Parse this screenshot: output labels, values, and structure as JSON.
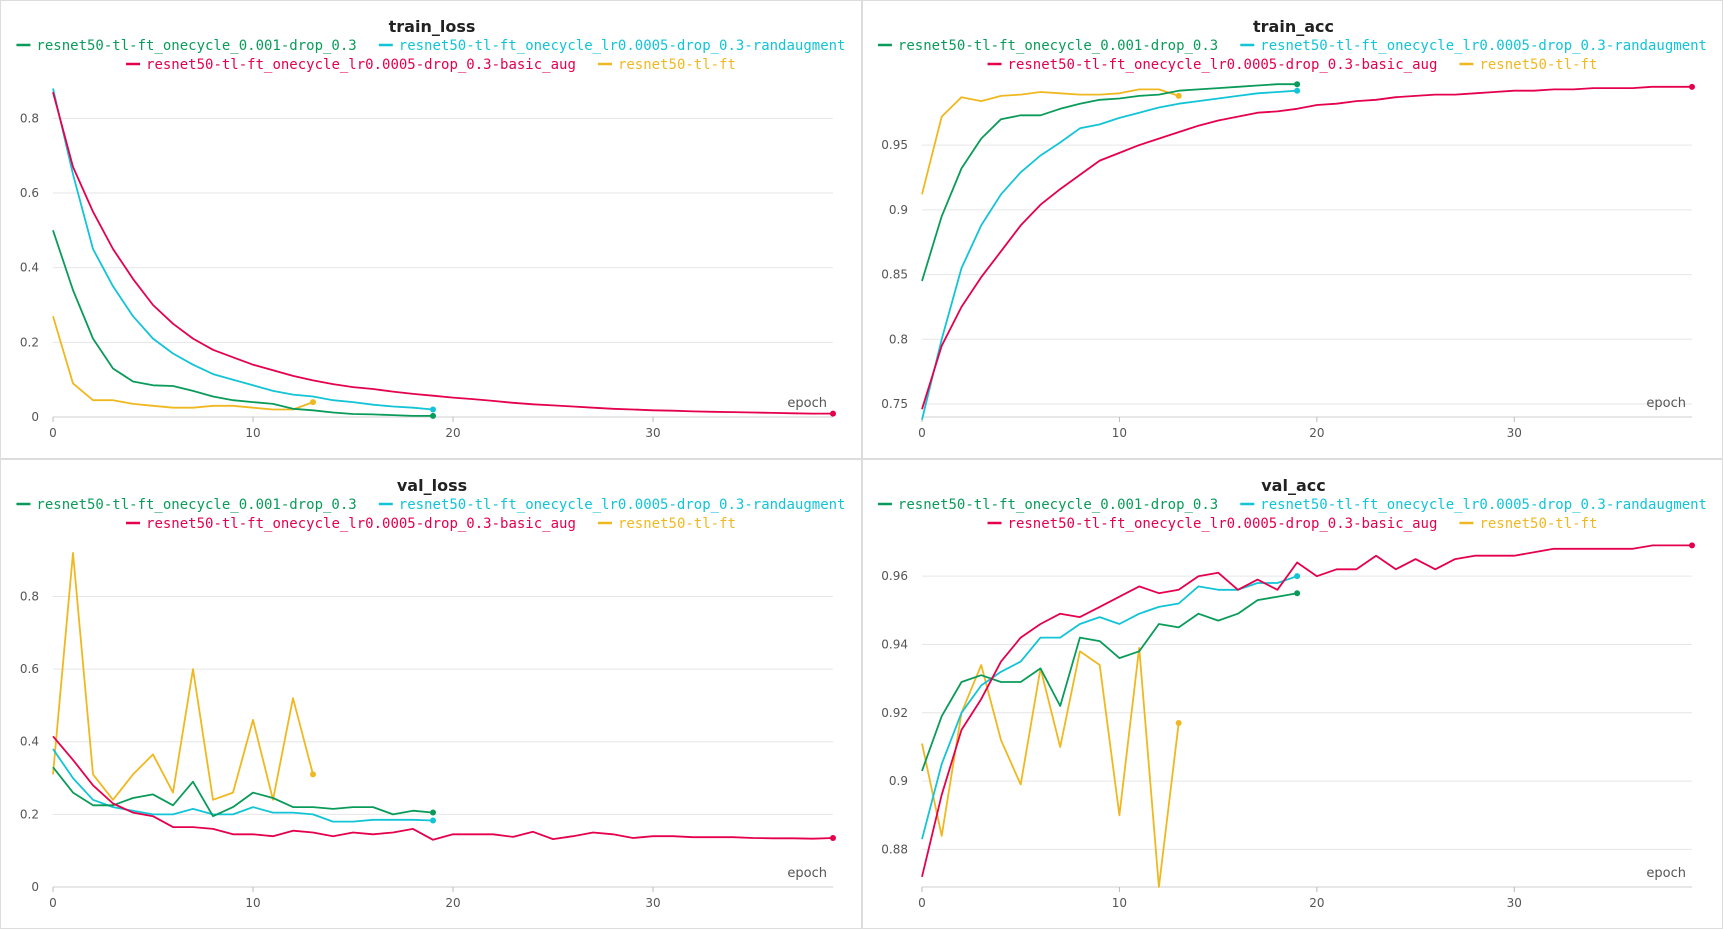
{
  "colors": {
    "resnet50-tl-ft_onecycle_0.001-drop_0.3": "#0a9b5a",
    "resnet50-tl-ft_onecycle_lr0.0005-drop_0.3-randaugment": "#12c4d6",
    "resnet50-tl-ft_onecycle_lr0.0005-drop_0.3-basic_aug": "#e5004d",
    "resnet50-tl-ft": "#f0b820"
  },
  "chart_data": [
    {
      "type": "line",
      "title": "train_loss",
      "xlabel": "epoch",
      "ylabel": "",
      "xlim": [
        0,
        39
      ],
      "ylim": [
        0,
        0.9
      ],
      "xticks": [
        0,
        10,
        20,
        30
      ],
      "yticks": [
        0,
        0.2,
        0.4,
        0.6,
        0.8
      ],
      "ytick_labels": [
        "0",
        "0.2",
        "0.4",
        "0.6",
        "0.8"
      ],
      "grid": true,
      "legend": "top",
      "series": [
        {
          "name": "resnet50-tl-ft_onecycle_0.001-drop_0.3",
          "values": [
            0.5,
            0.34,
            0.21,
            0.13,
            0.095,
            0.085,
            0.083,
            0.07,
            0.055,
            0.045,
            0.04,
            0.035,
            0.022,
            0.018,
            0.012,
            0.008,
            0.007,
            0.005,
            0.003,
            0.003
          ]
        },
        {
          "name": "resnet50-tl-ft_onecycle_lr0.0005-drop_0.3-randaugment",
          "values": [
            0.88,
            0.65,
            0.45,
            0.35,
            0.27,
            0.21,
            0.17,
            0.14,
            0.115,
            0.1,
            0.085,
            0.07,
            0.06,
            0.055,
            0.045,
            0.04,
            0.033,
            0.028,
            0.025,
            0.02
          ]
        },
        {
          "name": "resnet50-tl-ft_onecycle_lr0.0005-drop_0.3-basic_aug",
          "values": [
            0.87,
            0.67,
            0.55,
            0.45,
            0.37,
            0.3,
            0.25,
            0.21,
            0.18,
            0.16,
            0.14,
            0.125,
            0.11,
            0.098,
            0.088,
            0.08,
            0.075,
            0.068,
            0.062,
            0.057,
            0.052,
            0.048,
            0.043,
            0.038,
            0.034,
            0.031,
            0.028,
            0.025,
            0.022,
            0.02,
            0.018,
            0.017,
            0.015,
            0.014,
            0.013,
            0.012,
            0.011,
            0.01,
            0.009,
            0.009
          ]
        },
        {
          "name": "resnet50-tl-ft",
          "values": [
            0.27,
            0.09,
            0.045,
            0.045,
            0.035,
            0.03,
            0.025,
            0.025,
            0.03,
            0.03,
            0.025,
            0.02,
            0.02,
            0.04
          ]
        }
      ]
    },
    {
      "type": "line",
      "title": "train_acc",
      "xlabel": "epoch",
      "ylabel": "",
      "xlim": [
        0,
        39
      ],
      "ylim": [
        0.74,
        0.9995
      ],
      "xticks": [
        0,
        10,
        20,
        30
      ],
      "yticks": [
        0.75,
        0.8,
        0.85,
        0.9,
        0.95
      ],
      "ytick_labels": [
        "0.75",
        "0.8",
        "0.85",
        "0.9",
        "0.95"
      ],
      "grid": true,
      "legend": "top",
      "series": [
        {
          "name": "resnet50-tl-ft_onecycle_0.001-drop_0.3",
          "values": [
            0.845,
            0.895,
            0.932,
            0.955,
            0.97,
            0.973,
            0.973,
            0.978,
            0.982,
            0.985,
            0.986,
            0.988,
            0.989,
            0.992,
            0.993,
            0.994,
            0.995,
            0.996,
            0.997,
            0.997
          ]
        },
        {
          "name": "resnet50-tl-ft_onecycle_lr0.0005-drop_0.3-randaugment",
          "values": [
            0.738,
            0.8,
            0.855,
            0.888,
            0.912,
            0.929,
            0.942,
            0.952,
            0.963,
            0.966,
            0.971,
            0.975,
            0.979,
            0.982,
            0.984,
            0.986,
            0.988,
            0.99,
            0.991,
            0.992
          ]
        },
        {
          "name": "resnet50-tl-ft_onecycle_lr0.0005-drop_0.3-basic_aug",
          "values": [
            0.746,
            0.795,
            0.825,
            0.848,
            0.868,
            0.888,
            0.904,
            0.916,
            0.927,
            0.938,
            0.944,
            0.95,
            0.955,
            0.96,
            0.965,
            0.969,
            0.972,
            0.975,
            0.976,
            0.978,
            0.981,
            0.982,
            0.984,
            0.985,
            0.987,
            0.988,
            0.989,
            0.989,
            0.99,
            0.991,
            0.992,
            0.992,
            0.993,
            0.993,
            0.994,
            0.994,
            0.994,
            0.995,
            0.995,
            0.995
          ]
        },
        {
          "name": "resnet50-tl-ft",
          "values": [
            0.912,
            0.972,
            0.987,
            0.984,
            0.988,
            0.989,
            0.991,
            0.99,
            0.989,
            0.989,
            0.99,
            0.993,
            0.993,
            0.988
          ]
        }
      ]
    },
    {
      "type": "line",
      "title": "val_loss",
      "xlabel": "epoch",
      "ylabel": "",
      "xlim": [
        0,
        39
      ],
      "ylim": [
        0,
        0.95
      ],
      "xticks": [
        0,
        10,
        20,
        30
      ],
      "yticks": [
        0,
        0.2,
        0.4,
        0.6,
        0.8
      ],
      "ytick_labels": [
        "0",
        "0.2",
        "0.4",
        "0.6",
        "0.8"
      ],
      "grid": true,
      "legend": "top",
      "series": [
        {
          "name": "resnet50-tl-ft_onecycle_0.001-drop_0.3",
          "values": [
            0.33,
            0.26,
            0.225,
            0.225,
            0.245,
            0.255,
            0.225,
            0.29,
            0.195,
            0.22,
            0.26,
            0.245,
            0.22,
            0.22,
            0.215,
            0.22,
            0.22,
            0.2,
            0.21,
            0.205
          ]
        },
        {
          "name": "resnet50-tl-ft_onecycle_lr0.0005-drop_0.3-randaugment",
          "values": [
            0.38,
            0.3,
            0.24,
            0.22,
            0.21,
            0.2,
            0.2,
            0.215,
            0.2,
            0.2,
            0.22,
            0.205,
            0.205,
            0.2,
            0.18,
            0.18,
            0.185,
            0.185,
            0.185,
            0.183
          ]
        },
        {
          "name": "resnet50-tl-ft_onecycle_lr0.0005-drop_0.3-basic_aug",
          "values": [
            0.415,
            0.35,
            0.28,
            0.23,
            0.205,
            0.195,
            0.165,
            0.165,
            0.16,
            0.145,
            0.145,
            0.14,
            0.155,
            0.15,
            0.14,
            0.15,
            0.145,
            0.15,
            0.16,
            0.13,
            0.145,
            0.145,
            0.145,
            0.138,
            0.152,
            0.132,
            0.14,
            0.15,
            0.145,
            0.135,
            0.14,
            0.14,
            0.137,
            0.137,
            0.137,
            0.135,
            0.134,
            0.134,
            0.133,
            0.135
          ]
        },
        {
          "name": "resnet50-tl-ft",
          "values": [
            0.31,
            0.92,
            0.31,
            0.24,
            0.31,
            0.365,
            0.26,
            0.6,
            0.24,
            0.26,
            0.46,
            0.24,
            0.52,
            0.31
          ]
        }
      ]
    },
    {
      "type": "line",
      "title": "val_acc",
      "xlabel": "epoch",
      "ylabel": "",
      "xlim": [
        0,
        39
      ],
      "ylim": [
        0.869,
        0.97
      ],
      "xticks": [
        0,
        10,
        20,
        30
      ],
      "yticks": [
        0.88,
        0.9,
        0.92,
        0.94,
        0.96
      ],
      "ytick_labels": [
        "0.88",
        "0.9",
        "0.92",
        "0.94",
        "0.96"
      ],
      "grid": true,
      "legend": "top",
      "series": [
        {
          "name": "resnet50-tl-ft_onecycle_0.001-drop_0.3",
          "values": [
            0.903,
            0.919,
            0.929,
            0.931,
            0.929,
            0.929,
            0.933,
            0.922,
            0.942,
            0.941,
            0.936,
            0.938,
            0.946,
            0.945,
            0.949,
            0.947,
            0.949,
            0.953,
            0.954,
            0.955
          ]
        },
        {
          "name": "resnet50-tl-ft_onecycle_lr0.0005-drop_0.3-randaugment",
          "values": [
            0.883,
            0.905,
            0.92,
            0.928,
            0.932,
            0.935,
            0.942,
            0.942,
            0.946,
            0.948,
            0.946,
            0.949,
            0.951,
            0.952,
            0.957,
            0.956,
            0.956,
            0.958,
            0.958,
            0.96
          ]
        },
        {
          "name": "resnet50-tl-ft_onecycle_lr0.0005-drop_0.3-basic_aug",
          "values": [
            0.872,
            0.896,
            0.915,
            0.924,
            0.935,
            0.942,
            0.946,
            0.949,
            0.948,
            0.951,
            0.954,
            0.957,
            0.955,
            0.956,
            0.96,
            0.961,
            0.956,
            0.959,
            0.956,
            0.964,
            0.96,
            0.962,
            0.962,
            0.966,
            0.962,
            0.965,
            0.962,
            0.965,
            0.966,
            0.966,
            0.966,
            0.967,
            0.968,
            0.968,
            0.968,
            0.968,
            0.968,
            0.969,
            0.969,
            0.969
          ]
        },
        {
          "name": "resnet50-tl-ft",
          "values": [
            0.911,
            0.884,
            0.92,
            0.934,
            0.912,
            0.899,
            0.933,
            0.91,
            0.938,
            0.934,
            0.89,
            0.939,
            0.869,
            0.917
          ]
        }
      ]
    }
  ]
}
